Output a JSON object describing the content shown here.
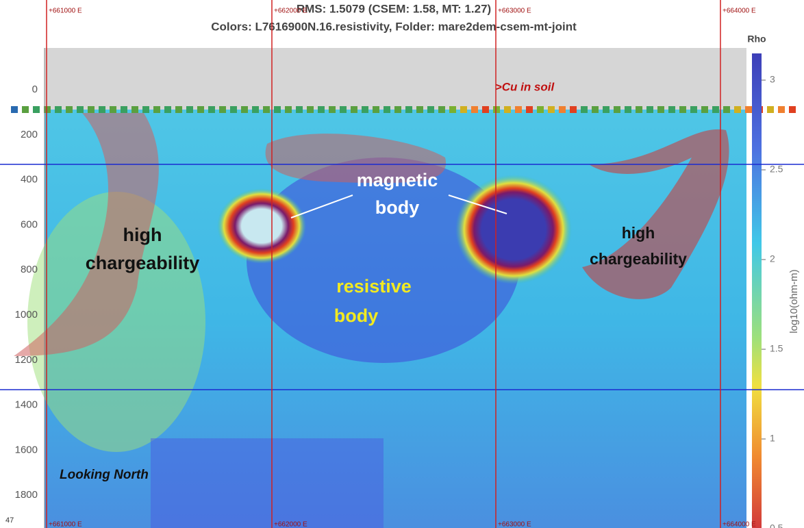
{
  "title": "RMS: 1.5079 (CSEM: 1.58, MT: 1.27)",
  "subtitle": "Colors: L7616900N.16.resistivity, Folder: mare2dem-csem-mt-joint",
  "depth_ticks": [
    "0",
    "200",
    "400",
    "600",
    "800",
    "1000",
    "1200",
    "1400",
    "1600",
    "1800"
  ],
  "eastings_top": [
    "+661000 E",
    "+662000 E",
    "+663000 E",
    "+664000 E"
  ],
  "eastings_bottom": [
    "+661000 E",
    "+662000 E",
    "+663000 E",
    "+664000 E"
  ],
  "colorbar": {
    "title": "Rho",
    "label": "log10(ohm-m)",
    "ticks": [
      "3",
      "2.5",
      "2",
      "1.5",
      "1",
      "0.5"
    ]
  },
  "corner_label": "47",
  "annotations": {
    "cu_in_soil": ">Cu in soil",
    "magnetic_body": [
      "magnetic",
      "body"
    ],
    "high_chargeability_left": [
      "high",
      "chargeability"
    ],
    "high_chargeability_right": [
      "high",
      "chargeability"
    ],
    "resistive_body": [
      "resistive",
      "body"
    ],
    "looking_north": "Looking North"
  }
}
